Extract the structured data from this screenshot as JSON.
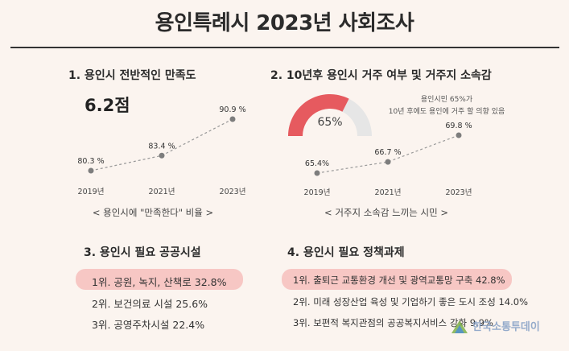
{
  "page_title": "용인특례시 2023년 사회조사",
  "section1": {
    "heading": "1. 용인시 전반적인 만족도",
    "score": "6.2점",
    "caption": "< 용인시에 \"만족한다\" 비율 >"
  },
  "section2": {
    "heading": "2. 10년후 용인시 거주 여부 및 거주지 소속감",
    "gauge_value": "65%",
    "gauge_fraction": 0.65,
    "note_line1": "용인시민 65%가",
    "note_line2": "10년 후에도 용인에 거주 할 의향 있음",
    "caption": "< 거주지 소속감 느끼는 시민 >"
  },
  "section3": {
    "heading": "3. 용인시 필요 공공시설",
    "items": [
      "1위. 공원, 녹지, 산책로 32.8%",
      "2위. 보건의료 시설 25.6%",
      "3위. 공영주차시설 22.4%"
    ]
  },
  "section4": {
    "heading": "4. 용인시 필요 정책과제",
    "items": [
      "1위. 출퇴근 교통환경 개선 및 광역교통망 구축 42.8%",
      "2위. 미래 성장산업 육성 및 기업하기 좋은 도시 조성 14.0%",
      "3위. 보편적 복지관점의 공공복지서비스 강화 9.9%"
    ]
  },
  "watermark": "한국소통투데이",
  "colors": {
    "accent": "#e65a5f",
    "highlight": "#f7c7c4",
    "point": "#7d7d7d",
    "track": "#e6e6e6"
  },
  "chart_data": [
    {
      "type": "line",
      "x": [
        "2019년",
        "2021년",
        "2023년"
      ],
      "values": [
        80.3,
        83.4,
        90.9
      ],
      "labels": [
        "80.3 %",
        "83.4 %",
        "90.9 %"
      ],
      "caption": "< 용인시에 \"만족한다\" 비율 >"
    },
    {
      "type": "line",
      "x": [
        "2019년",
        "2021년",
        "2023년"
      ],
      "values": [
        65.4,
        66.7,
        69.8
      ],
      "labels": [
        "65.4%",
        "66.7 %",
        "69.8 %"
      ],
      "caption": "< 거주지 소속감 느끼는 시민 >"
    }
  ]
}
